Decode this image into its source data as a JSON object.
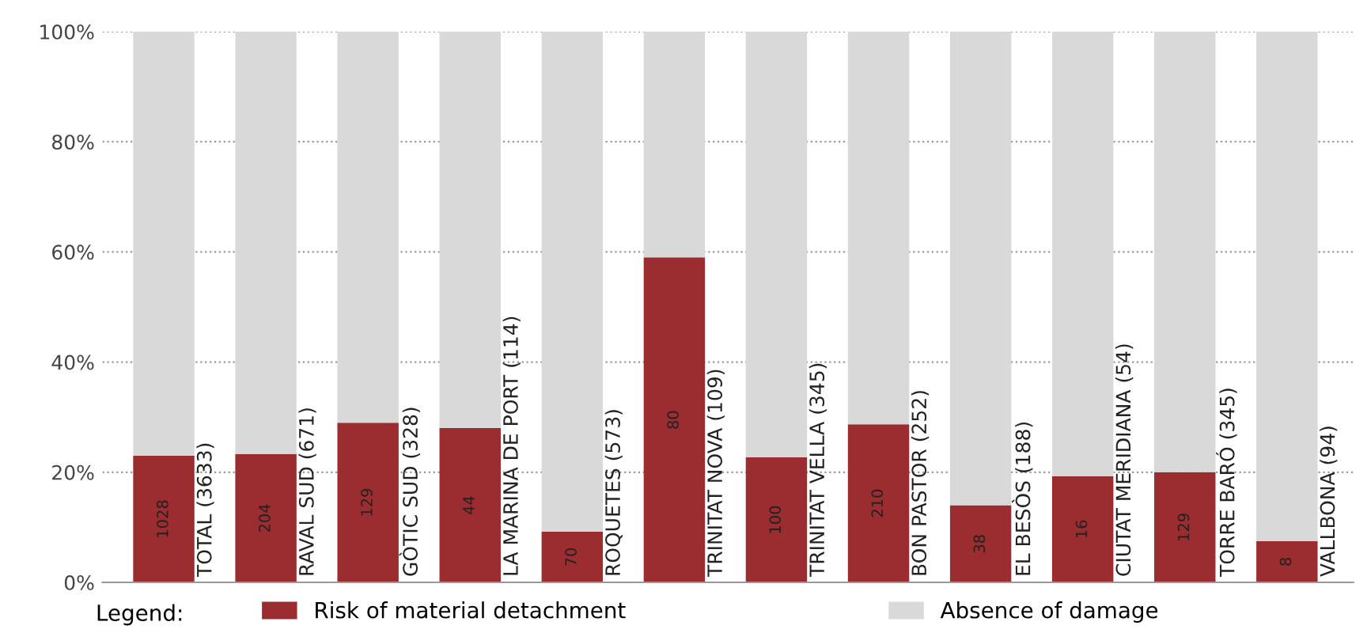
{
  "chart_data": {
    "type": "bar",
    "stacked": true,
    "categories": [
      "TOTAL (3633)",
      "RAVAL SUD (671)",
      "GÒTIC SUD (328)",
      "LA MARINA DE PORT (114)",
      "ROQUETES (573)",
      "TRINITAT NOVA (109)",
      "TRINITAT VELLA (345)",
      "BON PASTOR (252)",
      "EL BESÒS (188)",
      "CIUTAT MERIDIANA (54)",
      "TORRE BARÓ (345)",
      "VALLBONA (94)"
    ],
    "series": [
      {
        "name": "Risk of material detachment",
        "color": "#9b2d30",
        "values": [
          23,
          23.3,
          29,
          28,
          9.2,
          59,
          22.7,
          28.7,
          14,
          19.3,
          20,
          7.5
        ]
      },
      {
        "name": "Absence of damage",
        "color": "#d9d9d9",
        "values": [
          77,
          76.7,
          71,
          72,
          90.8,
          41,
          77.3,
          71.3,
          86,
          80.7,
          80,
          92.5
        ]
      }
    ],
    "ylim": [
      0,
      100
    ],
    "yticks": [
      {
        "value": 0,
        "label": "0%"
      },
      {
        "value": 20,
        "label": "20%"
      },
      {
        "value": 40,
        "label": "40%"
      },
      {
        "value": 60,
        "label": "60%"
      },
      {
        "value": 80,
        "label": "80%"
      },
      {
        "value": 100,
        "label": "100%"
      }
    ],
    "grid": "y",
    "legend": "bottom",
    "legend_title": "Legend:",
    "annotations": [
      "1028",
      "204",
      "129",
      "44",
      "70",
      "80",
      "100",
      "210",
      "38",
      "16",
      "129",
      "8"
    ]
  }
}
